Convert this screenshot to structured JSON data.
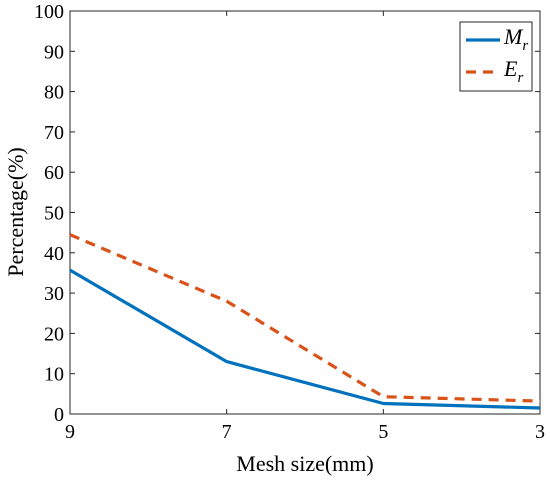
{
  "chart_data": {
    "type": "line",
    "title": "",
    "xlabel": "Mesh size(mm)",
    "ylabel": "Percentage(%)",
    "x": [
      9,
      7,
      5,
      3
    ],
    "x_tick_labels": [
      "9",
      "7",
      "5",
      "3"
    ],
    "x_reversed": true,
    "xlim": [
      9,
      3
    ],
    "ylim": [
      0,
      100
    ],
    "y_tick_labels": [
      "0",
      "10",
      "20",
      "30",
      "40",
      "50",
      "60",
      "70",
      "80",
      "90",
      "100"
    ],
    "grid": false,
    "legend_position": "top-right",
    "series": [
      {
        "name": "M",
        "subscript": "r",
        "values": [
          35.7,
          13.0,
          2.6,
          1.5
        ],
        "color": "#0072BD",
        "line_style": "solid"
      },
      {
        "name": "E",
        "subscript": "r",
        "values": [
          44.5,
          28.0,
          4.3,
          3.2
        ],
        "color": "#D95319",
        "line_style": "dashed"
      }
    ]
  }
}
